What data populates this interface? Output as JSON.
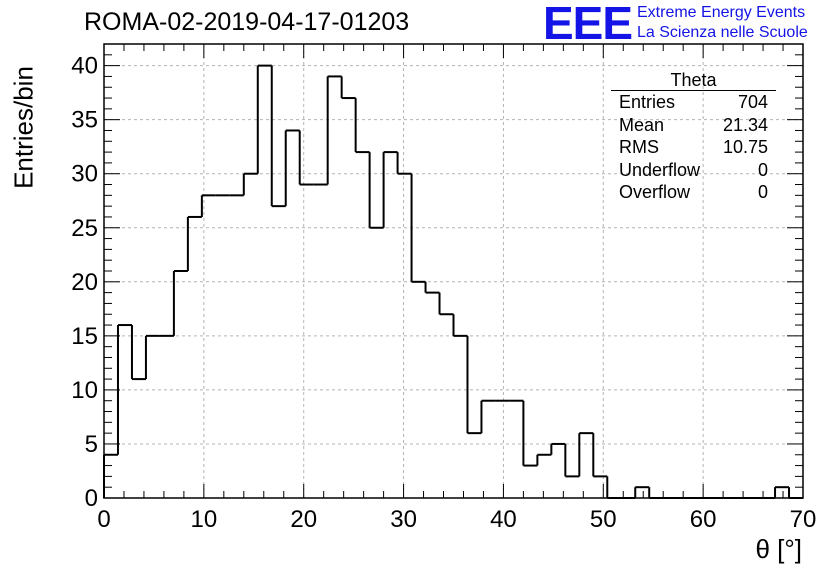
{
  "header": {
    "run_title": "ROMA-02-2019-04-17-01203",
    "logo_mark": "EEE",
    "logo_line1": "Extreme Energy Events",
    "logo_line2": "La Scienza nelle Scuole"
  },
  "stats_box": {
    "title": "Theta",
    "rows": [
      {
        "label": "Entries",
        "value": "704"
      },
      {
        "label": "Mean",
        "value": "21.34"
      },
      {
        "label": "RMS",
        "value": "10.75"
      },
      {
        "label": "Underflow",
        "value": "0"
      },
      {
        "label": "Overflow",
        "value": "0"
      }
    ]
  },
  "chart_data": {
    "type": "bar",
    "style": "step-histogram",
    "title": "ROMA-02-2019-04-17-01203",
    "xlabel": "θ [°]",
    "ylabel": "Entries/bin",
    "xlim": [
      0,
      70
    ],
    "ylim": [
      0,
      42
    ],
    "grid": true,
    "x_ticks": [
      0,
      10,
      20,
      30,
      40,
      50,
      60,
      70
    ],
    "y_ticks": [
      0,
      5,
      10,
      15,
      20,
      25,
      30,
      35,
      40
    ],
    "bin_width": 1.4,
    "bin_edges_start": 0,
    "values": [
      4,
      16,
      11,
      15,
      15,
      21,
      26,
      28,
      28,
      28,
      30,
      40,
      27,
      34,
      29,
      29,
      39,
      37,
      32,
      25,
      32,
      30,
      20,
      19,
      17,
      15,
      6,
      9,
      9,
      9,
      3,
      4,
      5,
      2,
      6,
      2,
      0,
      0,
      1,
      0,
      0,
      0,
      0,
      0,
      0,
      0,
      0,
      0,
      1,
      0
    ],
    "line_color": "#000000",
    "grid_color": "#b4b4b4"
  }
}
